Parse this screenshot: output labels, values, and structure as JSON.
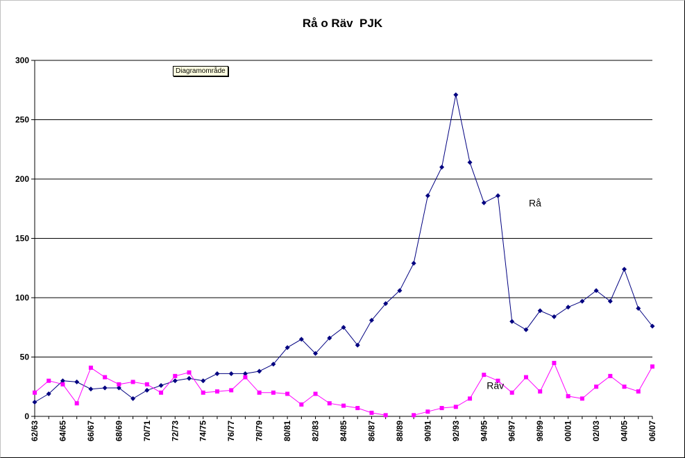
{
  "chart_data": {
    "type": "line",
    "title": "Rå o Räv  PJK",
    "xlabel": "",
    "ylabel": "",
    "ylim": [
      0,
      300
    ],
    "yticks": [
      0,
      50,
      100,
      150,
      200,
      250,
      300
    ],
    "grid": true,
    "x": [
      "62/63",
      "63/64",
      "64/65",
      "65/66",
      "66/67",
      "67/68",
      "68/69",
      "69/70",
      "70/71",
      "71/72",
      "72/73",
      "73/74",
      "74/75",
      "75/76",
      "76/77",
      "77/78",
      "78/79",
      "79/80",
      "80/81",
      "81/82",
      "82/83",
      "83/84",
      "84/85",
      "85/86",
      "86/87",
      "87/88",
      "88/89",
      "89/90",
      "90/91",
      "91/92",
      "92/93",
      "93/94",
      "94/95",
      "95/96",
      "96/97",
      "97/98",
      "98/99",
      "99/00",
      "00/01",
      "01/02",
      "02/03",
      "03/04",
      "04/05",
      "05/06",
      "06/07"
    ],
    "xtick_labels": [
      "62/63",
      "64/65",
      "66/67",
      "68/69",
      "70/71",
      "72/73",
      "74/75",
      "76/77",
      "78/79",
      "80/81",
      "82/83",
      "84/85",
      "86/87",
      "88/89",
      "90/91",
      "92/93",
      "94/95",
      "96/97",
      "98/99",
      "00/01",
      "02/03",
      "04/05",
      "06/07"
    ],
    "series": [
      {
        "name": "Rå",
        "color": "#000080",
        "marker": "diamond",
        "values": [
          12,
          19,
          30,
          29,
          23,
          24,
          24,
          15,
          22,
          26,
          30,
          32,
          30,
          36,
          36,
          36,
          38,
          44,
          58,
          65,
          53,
          66,
          75,
          60,
          81,
          95,
          106,
          129,
          186,
          210,
          271,
          214,
          180,
          186,
          80,
          73,
          89,
          84,
          92,
          97,
          106,
          97,
          124,
          91,
          76
        ]
      },
      {
        "name": "Räv",
        "color": "#ff00ff",
        "marker": "square",
        "values": [
          20,
          30,
          27,
          11,
          41,
          33,
          27,
          29,
          27,
          20,
          34,
          37,
          20,
          21,
          22,
          33,
          20,
          20,
          19,
          10,
          19,
          11,
          9,
          7,
          3,
          1,
          null,
          1,
          4,
          7,
          8,
          15,
          35,
          30,
          20,
          33,
          21,
          45,
          17,
          15,
          25,
          34,
          25,
          21,
          42
        ]
      }
    ]
  },
  "tooltip": "Diagramområde"
}
